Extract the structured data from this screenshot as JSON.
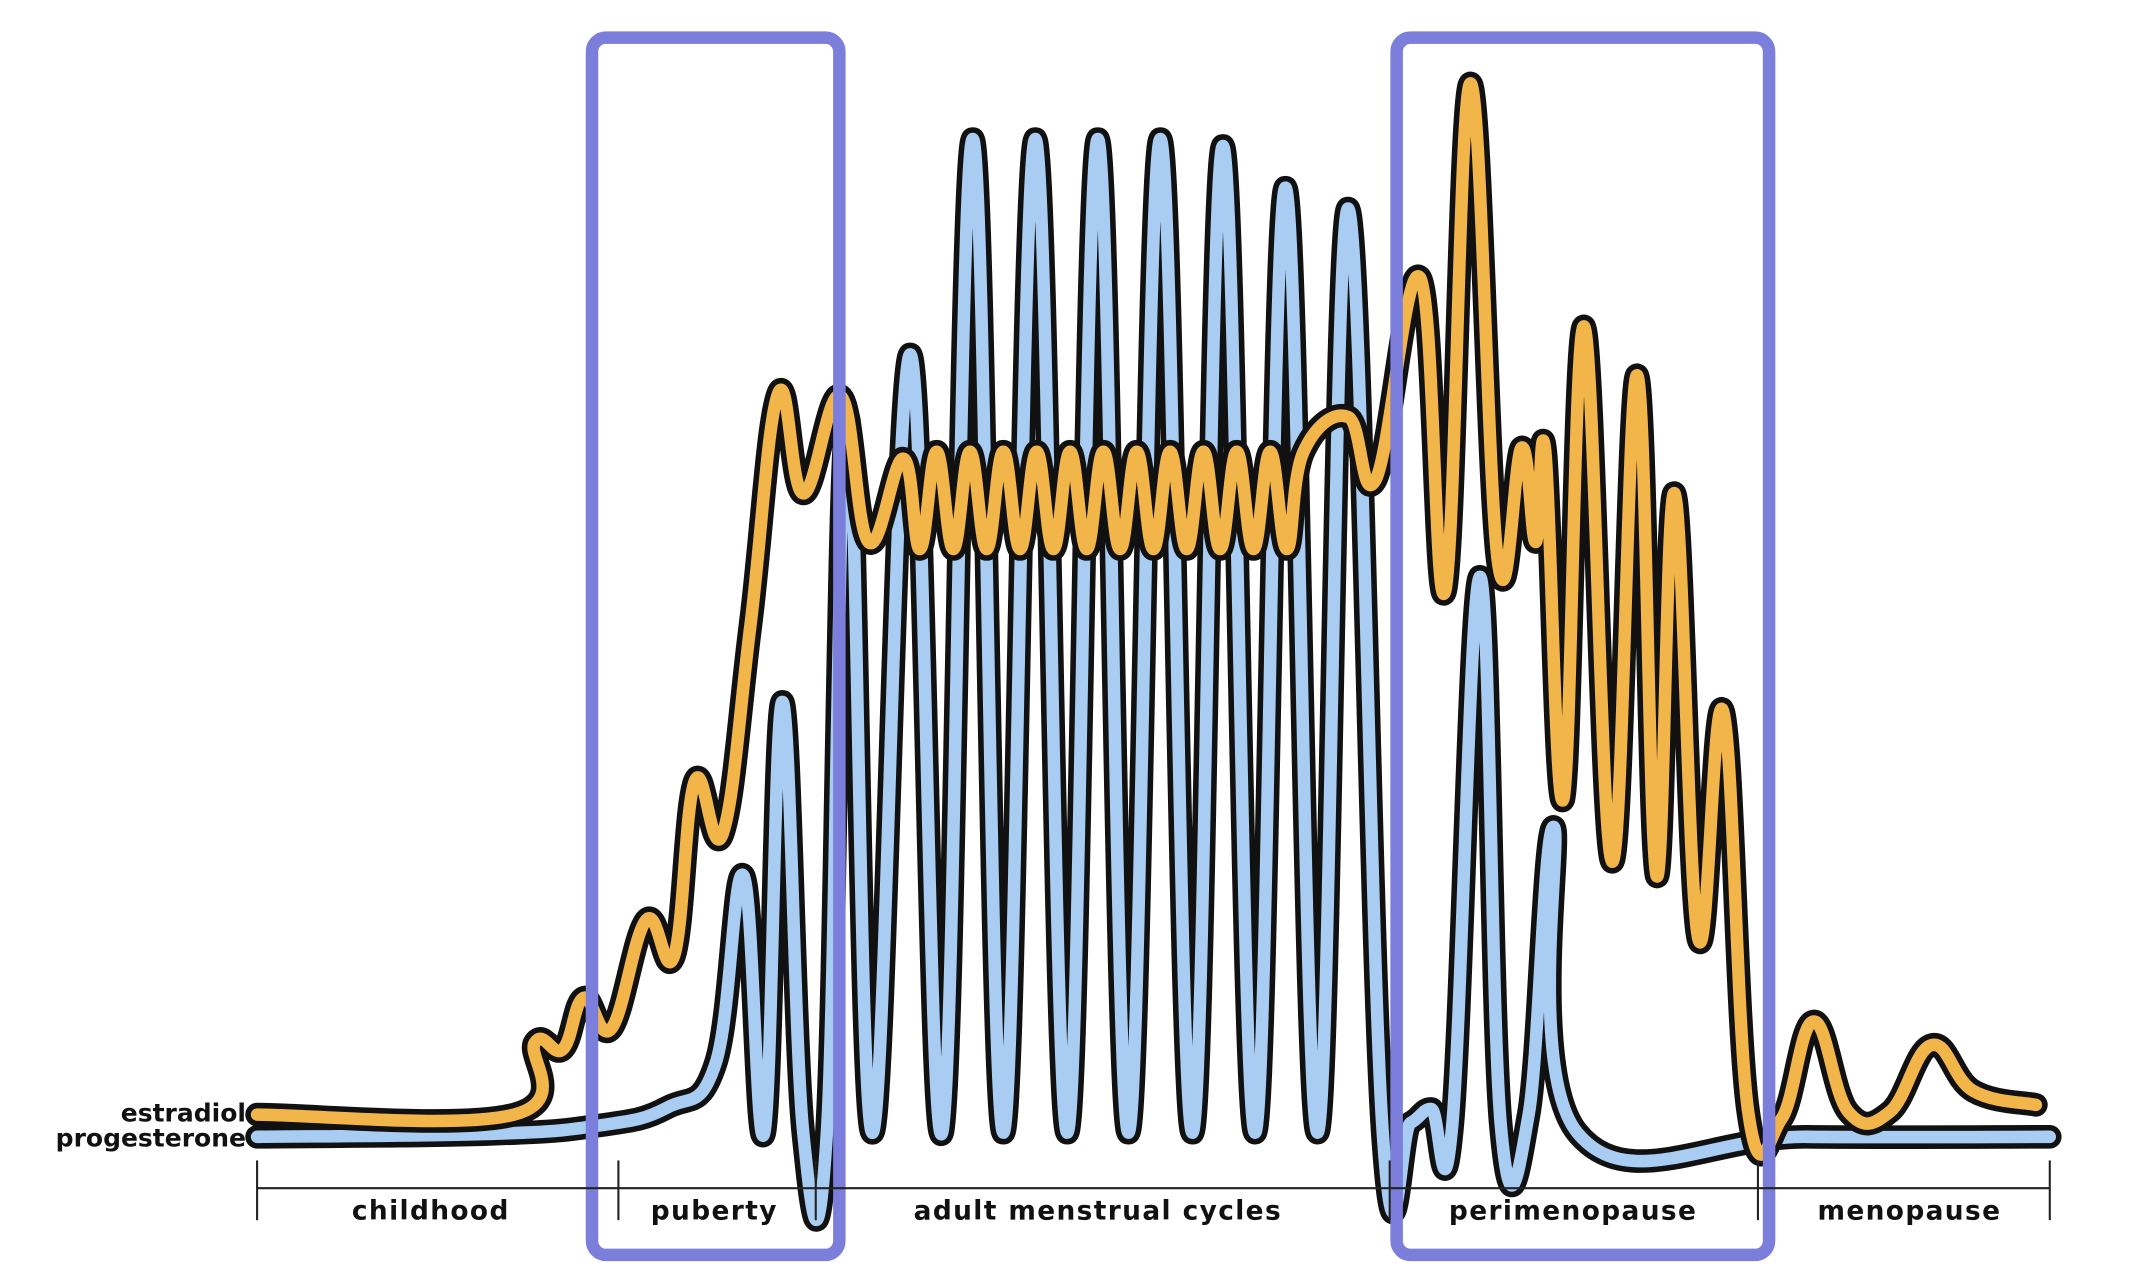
{
  "legend": {
    "estradiol": "estradiol",
    "progesterone": "progesterone"
  },
  "phases": [
    "childhood",
    "puberty",
    "adult menstrual cycles",
    "perimenopause",
    "menopause"
  ]
}
